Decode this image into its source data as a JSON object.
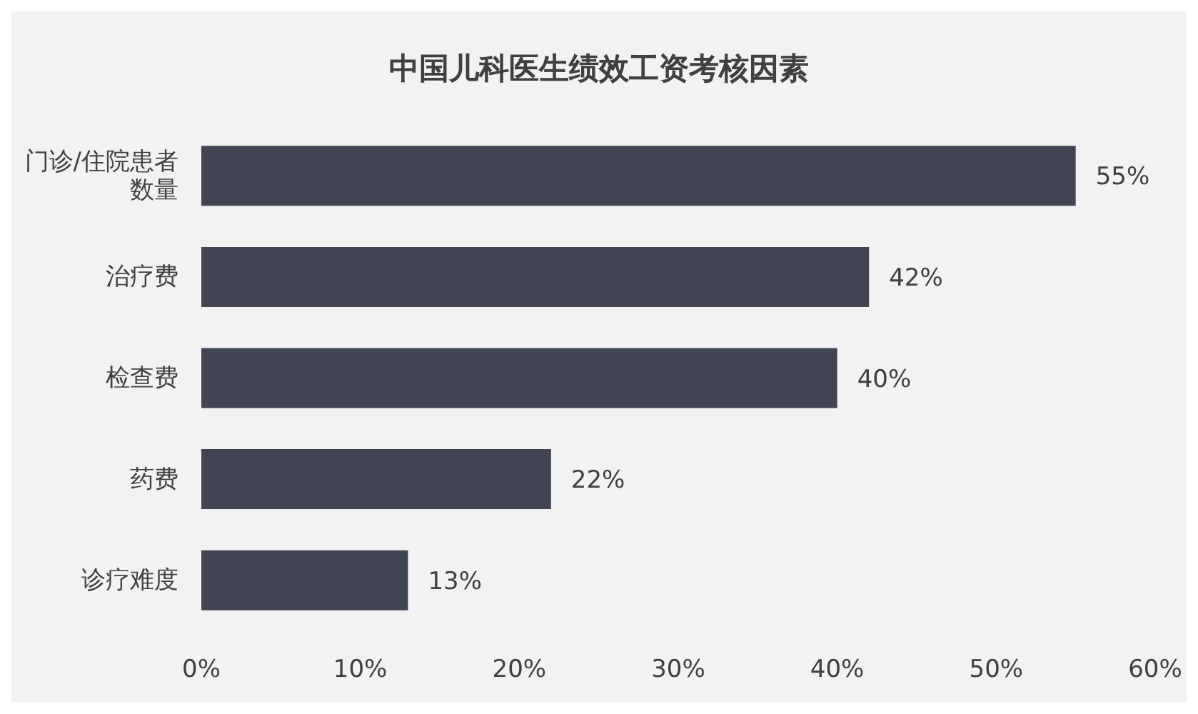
{
  "chart_data": {
    "type": "bar",
    "orientation": "horizontal",
    "title": "中国儿科医生绩效工资考核因素",
    "categories": [
      "门诊/住院患者数量",
      "治疗费",
      "检查费",
      "药费",
      "诊疗难度"
    ],
    "values": [
      55,
      42,
      40,
      22,
      13
    ],
    "value_labels": [
      "55%",
      "42%",
      "40%",
      "22%",
      "13%"
    ],
    "color": "#414453",
    "xlim": [
      0,
      60
    ],
    "xticks": [
      {
        "value": 0,
        "label": "0%"
      },
      {
        "value": 10,
        "label": "10%"
      },
      {
        "value": 20,
        "label": "20%"
      },
      {
        "value": 30,
        "label": "30%"
      },
      {
        "value": 40,
        "label": "40%"
      },
      {
        "value": 50,
        "label": "50%"
      },
      {
        "value": 60,
        "label": "60%"
      }
    ],
    "grid": false,
    "legend": false
  }
}
